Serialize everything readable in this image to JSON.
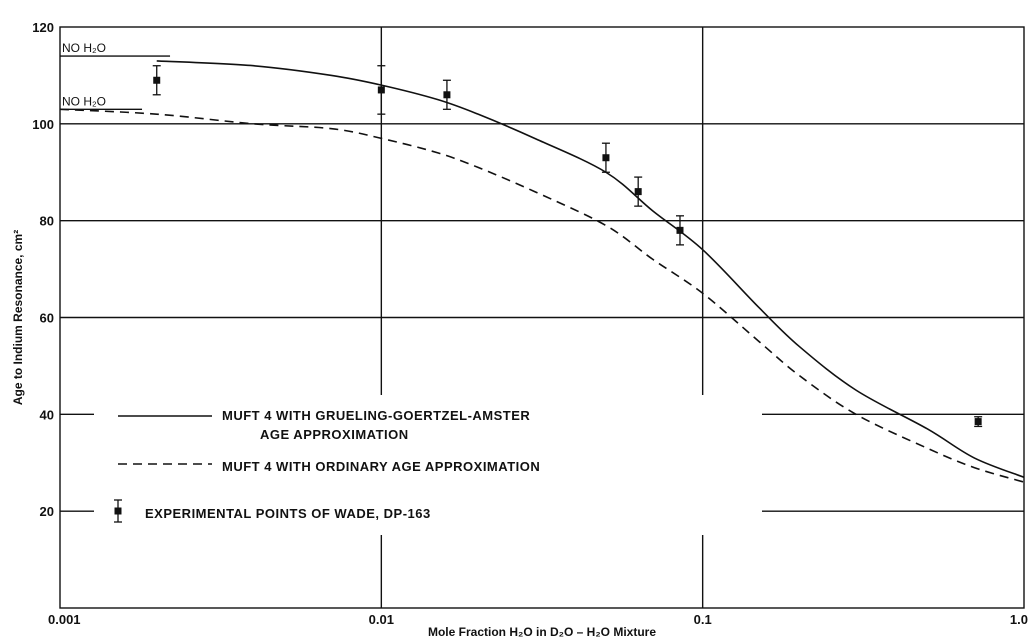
{
  "chart_data": {
    "type": "line",
    "x_scale": "log",
    "xlim": [
      0.001,
      1.0
    ],
    "ylim": [
      0,
      120
    ],
    "xlabel": "Mole Fraction H₂O in D₂O – H₂O Mixture",
    "ylabel": "Age to Indium Resonance, cm²",
    "x_ticks": [
      {
        "value": 0.001,
        "label": "0.001"
      },
      {
        "value": 0.01,
        "label": "0.01"
      },
      {
        "value": 0.1,
        "label": "0.1"
      },
      {
        "value": 1.0,
        "label": "1.0"
      }
    ],
    "y_ticks": [
      {
        "value": 20,
        "label": "20"
      },
      {
        "value": 40,
        "label": "40"
      },
      {
        "value": 60,
        "label": "60"
      },
      {
        "value": 80,
        "label": "80"
      },
      {
        "value": 100,
        "label": "100"
      },
      {
        "value": 120,
        "label": "120"
      }
    ],
    "grid": true,
    "annotations": [
      {
        "text": "NO  H₂O",
        "x": 0.001,
        "y": 114
      },
      {
        "text": "NO  H₂O",
        "x": 0.001,
        "y": 103
      }
    ],
    "series": [
      {
        "name": "MUFT 4 WITH GRUELING-GOERTZEL-AMSTER AGE APPROXIMATION",
        "style": "solid",
        "x": [
          0.002,
          0.004,
          0.007,
          0.01,
          0.015,
          0.02,
          0.03,
          0.05,
          0.07,
          0.1,
          0.15,
          0.2,
          0.3,
          0.5,
          0.7,
          1.0
        ],
        "y": [
          113,
          112,
          110,
          108,
          105,
          102,
          97,
          90,
          82,
          74,
          62,
          54,
          45,
          37,
          31,
          27
        ]
      },
      {
        "name": "MUFT 4 WITH ORDINARY AGE APPROXIMATION",
        "style": "dashed",
        "x": [
          0.001,
          0.002,
          0.004,
          0.007,
          0.01,
          0.015,
          0.02,
          0.03,
          0.05,
          0.07,
          0.1,
          0.15,
          0.2,
          0.3,
          0.5,
          0.7,
          1.0
        ],
        "y": [
          103,
          102,
          100,
          99,
          97,
          94,
          91,
          86,
          79,
          72,
          65,
          55,
          48,
          40,
          33,
          29,
          26
        ]
      },
      {
        "name": "EXPERIMENTAL POINTS OF WADE, DP-163",
        "style": "points",
        "points": [
          {
            "x": 0.002,
            "y": 109,
            "err": 3
          },
          {
            "x": 0.01,
            "y": 107,
            "err": 5
          },
          {
            "x": 0.016,
            "y": 106,
            "err": 3
          },
          {
            "x": 0.05,
            "y": 93,
            "err": 3
          },
          {
            "x": 0.063,
            "y": 86,
            "err": 3
          },
          {
            "x": 0.085,
            "y": 78,
            "err": 3
          },
          {
            "x": 0.72,
            "y": 38.5,
            "err": 1
          }
        ]
      }
    ],
    "legend": {
      "placement": "bottom-left",
      "entries": [
        {
          "lines": [
            "MUFT 4 WITH GRUELING-GOERTZEL-AMSTER",
            "AGE APPROXIMATION"
          ],
          "style": "solid"
        },
        {
          "lines": [
            "MUFT 4 WITH ORDINARY AGE APPROXIMATION"
          ],
          "style": "dashed"
        },
        {
          "lines": [
            "EXPERIMENTAL POINTS OF WADE, DP-163"
          ],
          "style": "points"
        }
      ]
    }
  }
}
